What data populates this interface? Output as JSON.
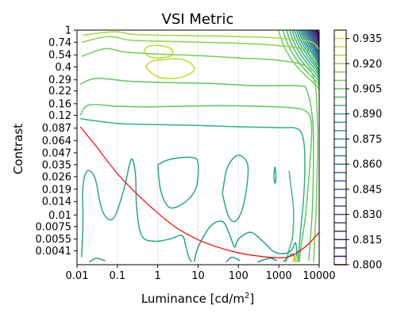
{
  "chart_data": {
    "type": "contour",
    "title": "VSI Metric",
    "xlabel": "Luminance [cd/m",
    "xlabel_sup": "2",
    "xlabel_end": "]",
    "ylabel": "Contrast",
    "x_scale": "log",
    "y_scale": "log",
    "xlim": [
      0.01,
      10000
    ],
    "ylim": [
      0.0029,
      1
    ],
    "x_ticks": [
      {
        "value": 0.01,
        "label": "0.01"
      },
      {
        "value": 0.1,
        "label": "0.1"
      },
      {
        "value": 1,
        "label": "1"
      },
      {
        "value": 10,
        "label": "10"
      },
      {
        "value": 100,
        "label": "100"
      },
      {
        "value": 1000,
        "label": "1000"
      },
      {
        "value": 10000,
        "label": "10000"
      }
    ],
    "y_ticks": [
      {
        "value": 1,
        "label": "1"
      },
      {
        "value": 0.74,
        "label": "0.74"
      },
      {
        "value": 0.54,
        "label": "0.54"
      },
      {
        "value": 0.4,
        "label": "0.4"
      },
      {
        "value": 0.29,
        "label": "0.29"
      },
      {
        "value": 0.22,
        "label": "0.22"
      },
      {
        "value": 0.16,
        "label": "0.16"
      },
      {
        "value": 0.12,
        "label": "0.12"
      },
      {
        "value": 0.087,
        "label": "0.087"
      },
      {
        "value": 0.064,
        "label": "0.064"
      },
      {
        "value": 0.047,
        "label": "0.047"
      },
      {
        "value": 0.035,
        "label": "0.035"
      },
      {
        "value": 0.026,
        "label": "0.026"
      },
      {
        "value": 0.019,
        "label": "0.019"
      },
      {
        "value": 0.014,
        "label": "0.014"
      },
      {
        "value": 0.01,
        "label": "0.01"
      },
      {
        "value": 0.0075,
        "label": "0.0075"
      },
      {
        "value": 0.0055,
        "label": "0.0055"
      },
      {
        "value": 0.0041,
        "label": "0.0041"
      }
    ],
    "colorbar": {
      "colormap": "viridis",
      "min": 0.8,
      "max": 0.94,
      "levels": [
        0.8,
        0.805,
        0.81,
        0.815,
        0.82,
        0.825,
        0.83,
        0.835,
        0.84,
        0.845,
        0.85,
        0.855,
        0.86,
        0.865,
        0.87,
        0.875,
        0.88,
        0.885,
        0.89,
        0.895,
        0.9,
        0.905,
        0.91,
        0.915,
        0.92,
        0.925,
        0.93,
        0.935,
        0.94
      ],
      "tick_labels": [
        "0.800",
        "0.815",
        "0.830",
        "0.845",
        "0.860",
        "0.875",
        "0.890",
        "0.905",
        "0.920",
        "0.935"
      ]
    },
    "grid": "vertical",
    "threshold_curve": {
      "color": "#ff0000",
      "x": [
        0.012,
        0.03,
        0.1,
        0.3,
        1,
        3,
        10,
        30,
        100,
        300,
        1000,
        2000,
        5000,
        10000
      ],
      "y": [
        0.09,
        0.055,
        0.028,
        0.017,
        0.0105,
        0.0072,
        0.0054,
        0.0045,
        0.0039,
        0.0036,
        0.00345,
        0.0036,
        0.0047,
        0.0065
      ]
    },
    "contours": [
      {
        "level": 0.905,
        "paths": [
          [
            [
              0.012,
              0.12
            ],
            [
              0.02,
              0.155
            ],
            [
              0.1,
              0.15
            ],
            [
              0.5,
              0.148
            ],
            [
              3,
              0.15
            ],
            [
              30,
              0.152
            ],
            [
              300,
              0.15
            ],
            [
              2000,
              0.145
            ],
            [
              5000,
              0.13
            ],
            [
              6500,
              0.09
            ],
            [
              6000,
              0.04
            ],
            [
              5200,
              0.018
            ],
            [
              4600,
              0.01
            ],
            [
              4000,
              0.0065
            ],
            [
              3500,
              0.0043
            ],
            [
              3200,
              0.0031
            ]
          ],
          [
            [
              0.012,
              0.26
            ],
            [
              0.03,
              0.3
            ],
            [
              0.2,
              0.28
            ],
            [
              2,
              0.27
            ],
            [
              20,
              0.265
            ],
            [
              300,
              0.25
            ],
            [
              3000,
              0.25
            ],
            [
              5000,
              0.22
            ],
            [
              7000,
              0.1
            ],
            [
              7200,
              0.035
            ],
            [
              6800,
              0.012
            ],
            [
              6000,
              0.0052
            ],
            [
              5500,
              0.0032
            ]
          ]
        ]
      },
      {
        "level": 0.91,
        "paths": [
          [
            [
              0.013,
              0.52
            ],
            [
              0.05,
              0.63
            ],
            [
              0.15,
              0.58
            ],
            [
              1,
              0.55
            ],
            [
              10,
              0.53
            ],
            [
              100,
              0.5
            ],
            [
              1000,
              0.47
            ],
            [
              5000,
              0.4
            ],
            [
              8000,
              0.25
            ],
            [
              9000,
              0.1
            ],
            [
              9000,
              0.04
            ],
            [
              8500,
              0.013
            ],
            [
              7600,
              0.0045
            ],
            [
              7300,
              0.0031
            ]
          ]
        ]
      },
      {
        "level": 0.915,
        "paths": [
          [
            [
              0.013,
              0.74
            ],
            [
              0.06,
              0.85
            ],
            [
              0.2,
              0.78
            ],
            [
              1,
              0.76
            ],
            [
              10,
              0.74
            ],
            [
              100,
              0.72
            ],
            [
              1000,
              0.68
            ],
            [
              5000,
              0.6
            ],
            [
              9500,
              0.4
            ]
          ]
        ]
      },
      {
        "level": 0.92,
        "paths": [
          [
            [
              0.014,
              0.88
            ],
            [
              0.08,
              0.96
            ],
            [
              0.25,
              0.9
            ],
            [
              1,
              0.88
            ],
            [
              10,
              0.87
            ],
            [
              100,
              0.85
            ],
            [
              1000,
              0.82
            ],
            [
              6000,
              0.75
            ],
            [
              9800,
              0.62
            ]
          ]
        ]
      },
      {
        "level": 0.925,
        "paths": [
          [
            [
              0.5,
              0.4
            ],
            [
              0.8,
              0.33
            ],
            [
              1.5,
              0.3
            ],
            [
              4,
              0.31
            ],
            [
              8,
              0.37
            ],
            [
              6,
              0.45
            ],
            [
              3,
              0.49
            ],
            [
              1.5,
              0.48
            ],
            [
              0.7,
              0.46
            ],
            [
              0.5,
              0.4
            ]
          ],
          [
            [
              0.45,
              0.6
            ],
            [
              0.6,
              0.52
            ],
            [
              1.1,
              0.5
            ],
            [
              2.2,
              0.53
            ],
            [
              2.2,
              0.62
            ],
            [
              1.2,
              0.68
            ],
            [
              0.6,
              0.67
            ],
            [
              0.45,
              0.6
            ]
          ]
        ]
      },
      {
        "level": 0.89,
        "paths": [
          [
            [
              0.012,
              0.11
            ],
            [
              0.1,
              0.098
            ],
            [
              1,
              0.095
            ],
            [
              10,
              0.093
            ],
            [
              100,
              0.09
            ],
            [
              1000,
              0.088
            ],
            [
              3000,
              0.085
            ],
            [
              4200,
              0.06
            ],
            [
              4400,
              0.03
            ],
            [
              4100,
              0.015
            ],
            [
              3600,
              0.008
            ],
            [
              3200,
              0.0045
            ],
            [
              3000,
              0.0031
            ]
          ]
        ]
      },
      {
        "level": 0.885,
        "paths": [
          [
            [
              0.013,
              0.0035
            ],
            [
              0.014,
              0.008
            ],
            [
              0.014,
              0.02
            ],
            [
              0.018,
              0.03
            ],
            [
              0.028,
              0.025
            ],
            [
              0.04,
              0.012
            ],
            [
              0.06,
              0.009
            ],
            [
              0.09,
              0.01
            ],
            [
              0.15,
              0.02
            ],
            [
              0.22,
              0.04
            ],
            [
              0.28,
              0.028
            ],
            [
              0.3,
              0.012
            ],
            [
              0.4,
              0.006
            ],
            [
              0.8,
              0.0052
            ],
            [
              2,
              0.0055
            ],
            [
              4,
              0.006
            ],
            [
              5,
              0.0045
            ],
            [
              6,
              0.0034
            ],
            [
              7,
              0.0031
            ]
          ],
          [
            [
              1,
              0.035
            ],
            [
              2,
              0.04
            ],
            [
              7,
              0.042
            ],
            [
              10,
              0.036
            ],
            [
              9,
              0.02
            ],
            [
              5,
              0.014
            ],
            [
              2,
              0.012
            ],
            [
              1.2,
              0.018
            ],
            [
              1,
              0.035
            ]
          ],
          [
            [
              40,
              0.017
            ],
            [
              50,
              0.03
            ],
            [
              70,
              0.04
            ],
            [
              110,
              0.044
            ],
            [
              170,
              0.035
            ],
            [
              160,
              0.02
            ],
            [
              120,
              0.011
            ],
            [
              80,
              0.0085
            ],
            [
              55,
              0.01
            ],
            [
              40,
              0.017
            ]
          ],
          [
            [
              750,
              0.026
            ],
            [
              800,
              0.033
            ],
            [
              850,
              0.026
            ],
            [
              800,
              0.022
            ],
            [
              750,
              0.026
            ]
          ]
        ]
      },
      {
        "level": 0.88,
        "paths": [
          [
            [
              0.02,
              0.0031
            ],
            [
              0.03,
              0.0034
            ],
            [
              0.05,
              0.0032
            ]
          ],
          [
            [
              8,
              0.0031
            ],
            [
              10,
              0.0045
            ],
            [
              20,
              0.0075
            ],
            [
              40,
              0.0085
            ],
            [
              60,
              0.0062
            ],
            [
              80,
              0.0045
            ],
            [
              100,
              0.0055
            ],
            [
              200,
              0.0065
            ],
            [
              400,
              0.0052
            ],
            [
              700,
              0.0041
            ],
            [
              1200,
              0.0038
            ],
            [
              2000,
              0.0041
            ],
            [
              2600,
              0.005
            ],
            [
              2800,
              0.0035
            ],
            [
              2700,
              0.0031
            ]
          ]
        ]
      },
      {
        "level": 0.875,
        "paths": [
          [
            [
              50,
              0.0031
            ],
            [
              70,
              0.0035
            ],
            [
              110,
              0.0032
            ]
          ],
          [
            [
              1300,
              0.0031
            ],
            [
              1700,
              0.0035
            ],
            [
              2200,
              0.0038
            ],
            [
              2500,
              0.0034
            ],
            [
              2450,
              0.0031
            ]
          ]
        ]
      },
      {
        "level": 0.87,
        "paths": [
          [
            [
              300,
              0.0031
            ],
            [
              600,
              0.0034
            ],
            [
              900,
              0.0032
            ]
          ]
        ]
      },
      {
        "level": 0.895,
        "paths": [
          [
            [
              1500,
              0.0031
            ],
            [
              1800,
              0.0042
            ],
            [
              2200,
              0.006
            ],
            [
              2300,
              0.012
            ],
            [
              2000,
              0.02
            ],
            [
              1800,
              0.03
            ]
          ]
        ]
      },
      {
        "level": 0.93,
        "paths": [
          [
            [
              2200,
              0.0031
            ],
            [
              2600,
              0.0036
            ],
            [
              2900,
              0.0033
            ],
            [
              2800,
              0.0031
            ]
          ]
        ]
      },
      {
        "level": 0.94,
        "paths": [
          [
            [
              2500,
              0.0031
            ],
            [
              2700,
              0.0034
            ],
            [
              2850,
              0.0031
            ]
          ]
        ]
      }
    ],
    "top_right_gradient": {
      "levels": [
        0.91,
        0.905,
        0.9,
        0.895,
        0.89,
        0.885,
        0.88,
        0.875,
        0.87,
        0.865,
        0.86,
        0.855,
        0.85,
        0.845,
        0.84,
        0.835,
        0.83,
        0.825,
        0.82,
        0.815,
        0.81,
        0.805,
        0.8
      ]
    }
  }
}
